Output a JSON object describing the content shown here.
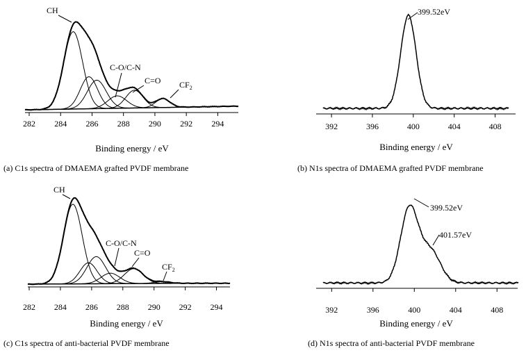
{
  "figure": {
    "panels": [
      {
        "caption": "(a) C1s spectra of DMAEMA grafted PVDF membrane"
      },
      {
        "caption": "(b) N1s spectra of DMAEMA grafted PVDF membrane"
      },
      {
        "caption": "(c) C1s spectra of anti-bacterial PVDF membrane"
      },
      {
        "caption": "(d) N1s spectra of anti-bacterial PVDF membrane"
      }
    ]
  },
  "chart_data": [
    {
      "panel": "a",
      "type": "line",
      "title": "(a) C1s spectra of DMAEMA grafted PVDF membrane",
      "xlabel": "Binding energy / eV",
      "ylabel": "",
      "xlim": [
        282,
        295
      ],
      "ylim": [
        0,
        1.0
      ],
      "xticks": [
        282,
        284,
        286,
        288,
        290,
        292,
        294
      ],
      "background": {
        "x": [
          282.1,
          292,
          295
        ],
        "y": [
          0.0,
          0.03,
          0.04
        ]
      },
      "components": [
        {
          "name": "CH",
          "center": 284.8,
          "height": 0.87,
          "width": 0.6
        },
        {
          "name": "C-O/C-N",
          "center": 285.8,
          "height": 0.36,
          "width": 0.55
        },
        {
          "name": "C-O/C-N",
          "center": 286.3,
          "height": 0.32,
          "width": 0.6
        },
        {
          "name": "C-O/C-N",
          "center": 287.6,
          "height": 0.14,
          "width": 0.6
        },
        {
          "name": "C=O",
          "center": 288.7,
          "height": 0.2,
          "width": 0.55
        },
        {
          "name": "CF2",
          "center": 290.5,
          "height": 0.1,
          "width": 0.45
        }
      ],
      "annotations": [
        {
          "label": "CH",
          "x": 285.0
        },
        {
          "label": "C-O/C-N",
          "x": 287.4
        },
        {
          "label": "C=O",
          "x": 288.6
        },
        {
          "label_main": "CF",
          "label_sub": "2",
          "x": 290.3
        }
      ]
    },
    {
      "panel": "b",
      "type": "line",
      "title": "(b) N1s spectra of DMAEMA grafted PVDF membrane",
      "xlabel": "Binding energy / eV",
      "ylabel": "",
      "xlim": [
        390.5,
        410
      ],
      "ylim": [
        0,
        1.0
      ],
      "xticks": [
        392,
        396,
        400,
        404,
        408
      ],
      "baseline": 0.03,
      "peaks": [
        {
          "center": 399.52,
          "height": 1.0,
          "width": 0.75
        }
      ],
      "annotations": [
        {
          "label": "399.52eV",
          "x": 399.52
        }
      ]
    },
    {
      "panel": "c",
      "type": "line",
      "title": "(c) C1s spectra of anti-bacterial PVDF membrane",
      "xlabel": "Binding energy / eV",
      "ylabel": "",
      "xlim": [
        282,
        295
      ],
      "ylim": [
        0,
        1.0
      ],
      "xticks": [
        282,
        284,
        286,
        288,
        290,
        292,
        294
      ],
      "background": {
        "x": [
          282.1,
          292,
          295
        ],
        "y": [
          0.0,
          0.01,
          0.01
        ]
      },
      "components": [
        {
          "name": "CH",
          "center": 284.8,
          "height": 0.91,
          "width": 0.6
        },
        {
          "name": "C-O/C-N",
          "center": 285.8,
          "height": 0.24,
          "width": 0.55
        },
        {
          "name": "C-O/C-N",
          "center": 286.3,
          "height": 0.31,
          "width": 0.6
        },
        {
          "name": "C-O/C-N",
          "center": 287.2,
          "height": 0.12,
          "width": 0.6
        },
        {
          "name": "C=O",
          "center": 288.7,
          "height": 0.17,
          "width": 0.6
        },
        {
          "name": "CF2",
          "center": 290.5,
          "height": 0.02,
          "width": 0.5
        }
      ],
      "annotations": [
        {
          "label": "CH",
          "x": 284.9
        },
        {
          "label": "C-O/C-N",
          "x": 287.1
        },
        {
          "label": "C=O",
          "x": 288.6
        },
        {
          "label_main": "CF",
          "label_sub": "2",
          "x": 290.6
        }
      ]
    },
    {
      "panel": "d",
      "type": "line",
      "title": "(d) N1s spectra of anti-bacterial PVDF membrane",
      "xlabel": "Binding energy / eV",
      "ylabel": "",
      "xlim": [
        390.5,
        410
      ],
      "ylim": [
        0,
        1.0
      ],
      "xticks": [
        392,
        396,
        400,
        404,
        408
      ],
      "baseline": 0.03,
      "peaks": [
        {
          "center": 399.52,
          "height": 0.86,
          "width": 0.85
        },
        {
          "center": 401.57,
          "height": 0.37,
          "width": 0.95
        }
      ],
      "annotations": [
        {
          "label": "399.52eV",
          "x": 399.52
        },
        {
          "label": "401.57eV",
          "x": 401.57
        }
      ]
    }
  ]
}
